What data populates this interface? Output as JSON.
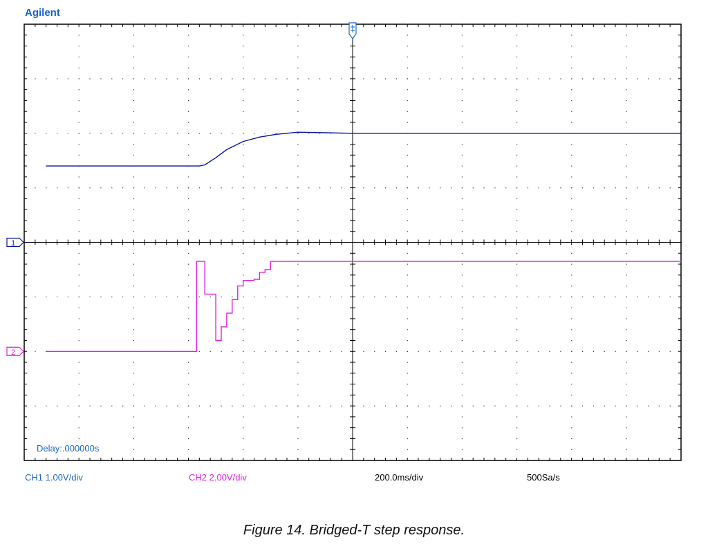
{
  "brand": {
    "label": "Agilent",
    "color": "#1464c8"
  },
  "status_bar": {
    "ch1_scale": "CH1 1.00V/div",
    "ch2_scale": "CH2 2.00V/div",
    "timebase": "200.0ms/div",
    "sample_rate": "500Sa/s"
  },
  "delay_label": "Delay:.000000s",
  "caption": "Figure 14. Bridged-T step response.",
  "colors": {
    "ch1": "#0a14a0",
    "ch2": "#e020e0",
    "grid": "#000000",
    "status_text": "#1a64c8"
  },
  "channel_markers": {
    "ch1": "1",
    "ch2": "2"
  },
  "chart_data": {
    "type": "line",
    "x_unit": "div",
    "xlim": [
      0,
      12
    ],
    "ylim": [
      -4,
      4
    ],
    "grid": true,
    "divisions": {
      "x": 12,
      "y": 8
    },
    "series": [
      {
        "x": [
          0.4,
          1.0,
          2.0,
          3.0,
          3.2,
          3.3,
          3.5,
          3.7,
          4.0,
          4.3,
          4.6,
          4.8,
          5.0,
          5.5,
          6.0,
          7.0,
          8.0,
          9.0,
          10.0,
          11.0,
          12.0
        ],
        "y": [
          1.4,
          1.4,
          1.4,
          1.4,
          1.4,
          1.42,
          1.55,
          1.7,
          1.85,
          1.93,
          1.98,
          2.0,
          2.02,
          2.01,
          2.0,
          2.0,
          2.0,
          2.0,
          2.0,
          2.0,
          2.0
        ]
      },
      {
        "x": [
          0.4,
          1.0,
          2.0,
          3.0,
          3.1,
          3.15,
          3.25,
          3.3,
          3.4,
          3.5,
          3.55,
          3.6,
          3.7,
          3.8,
          3.9,
          4.0,
          4.1,
          4.2,
          4.3,
          4.4,
          4.5,
          4.6,
          4.7,
          5.0,
          6.0,
          7.0,
          8.0,
          9.0,
          10.0,
          11.0,
          12.0
        ],
        "y": [
          -2.0,
          -2.0,
          -2.0,
          -2.0,
          -2.0,
          -0.35,
          -0.35,
          -0.95,
          -0.95,
          -1.8,
          -1.8,
          -1.55,
          -1.3,
          -1.05,
          -0.8,
          -0.7,
          -0.7,
          -0.68,
          -0.55,
          -0.5,
          -0.35,
          -0.35,
          -0.35,
          -0.35,
          -0.35,
          -0.35,
          -0.35,
          -0.35,
          -0.35,
          -0.35,
          -0.35
        ]
      }
    ]
  }
}
